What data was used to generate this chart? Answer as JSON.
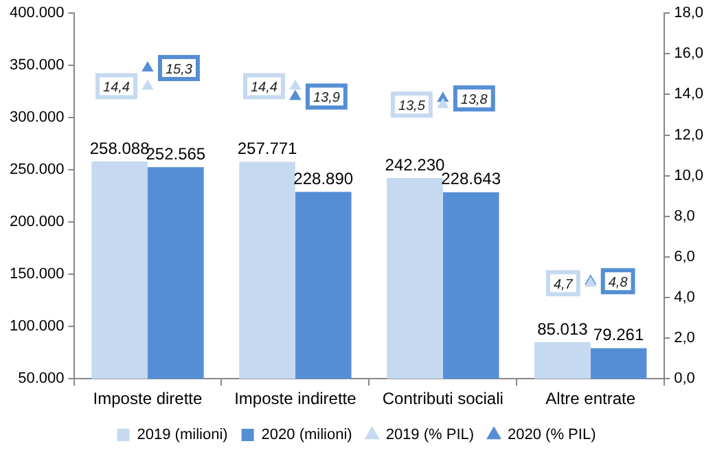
{
  "chart_data": {
    "type": "bar",
    "categories": [
      "Imposte dirette",
      "Imposte indirette",
      "Contributi sociali",
      "Altre entrate"
    ],
    "series": [
      {
        "name": "2019 (milioni)",
        "color": "#c5d9f1",
        "values": [
          258088,
          257771,
          242230,
          85013
        ],
        "value_labels": [
          "258.088",
          "257.771",
          "242.230",
          "85.013"
        ]
      },
      {
        "name": "2020 (milioni)",
        "color": "#558ed5",
        "values": [
          252565,
          228890,
          228643,
          79261
        ],
        "value_labels": [
          "252.565",
          "228.890",
          "228.643",
          "79.261"
        ]
      },
      {
        "name": "2019 (% PIL)",
        "type": "scatter",
        "axis": "y2",
        "color": "#c5d9f1",
        "values": [
          14.4,
          14.4,
          13.5,
          4.7
        ],
        "value_labels": [
          "14,4",
          "14,4",
          "13,5",
          "4,7"
        ]
      },
      {
        "name": "2020 (% PIL)",
        "type": "scatter",
        "axis": "y2",
        "color": "#558ed5",
        "values": [
          15.3,
          13.9,
          13.8,
          4.8
        ],
        "value_labels": [
          "15,3",
          "13,9",
          "13,8",
          "4,8"
        ]
      }
    ],
    "marker": "triangle",
    "ylim": [
      50000,
      400000
    ],
    "yticks": [
      {
        "value": 50000,
        "label": "50.000"
      },
      {
        "value": 100000,
        "label": "100.000"
      },
      {
        "value": 150000,
        "label": "150.000"
      },
      {
        "value": 200000,
        "label": "200.000"
      },
      {
        "value": 250000,
        "label": "250.000"
      },
      {
        "value": 300000,
        "label": "300.000"
      },
      {
        "value": 350000,
        "label": "350.000"
      },
      {
        "value": 400000,
        "label": "400.000"
      }
    ],
    "y2lim": [
      0,
      18
    ],
    "y2ticks": [
      {
        "value": 0,
        "label": "0,0"
      },
      {
        "value": 2,
        "label": "2,0"
      },
      {
        "value": 4,
        "label": "4,0"
      },
      {
        "value": 6,
        "label": "6,0"
      },
      {
        "value": 8,
        "label": "8,0"
      },
      {
        "value": 10,
        "label": "10,0"
      },
      {
        "value": 12,
        "label": "12,0"
      },
      {
        "value": 14,
        "label": "14,0"
      },
      {
        "value": 16,
        "label": "16,0"
      },
      {
        "value": 18,
        "label": "18,0"
      }
    ],
    "grid": false,
    "legend": "bottom"
  }
}
